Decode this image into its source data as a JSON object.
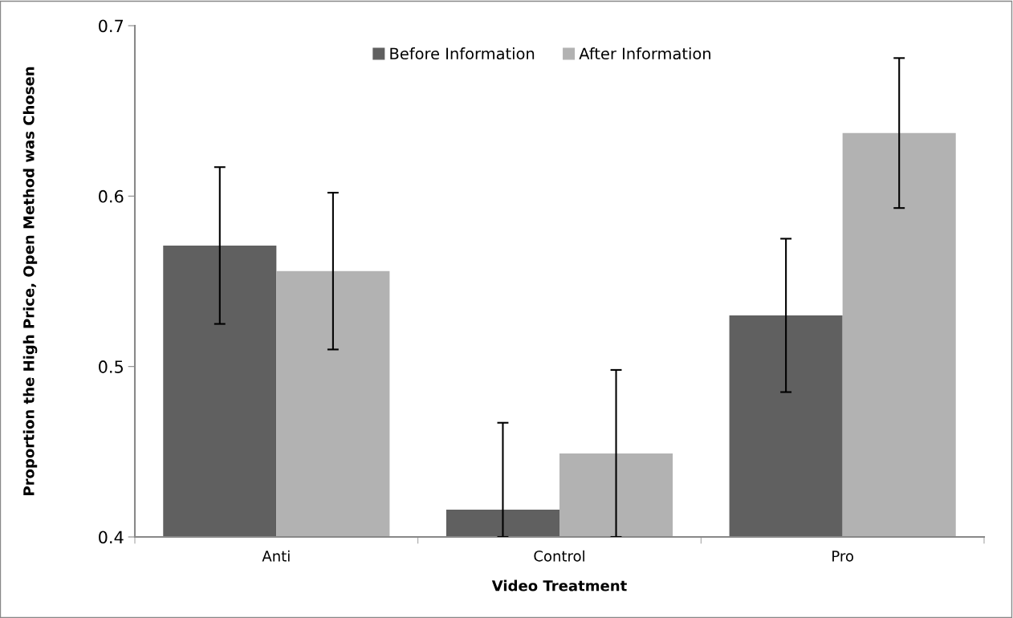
{
  "chart_data": {
    "type": "bar",
    "xlabel": "Video Treatment",
    "ylabel": "Proportion the High Price, Open Method was Chosen",
    "categories": [
      "Anti",
      "Control",
      "Pro"
    ],
    "series": [
      {
        "name": "Before Information",
        "color": "#606060",
        "values": [
          0.571,
          0.416,
          0.53
        ],
        "errors": [
          0.046,
          [
            0.4,
            0.467
          ],
          0.045
        ]
      },
      {
        "name": "After Information",
        "color": "#b2b2b2",
        "values": [
          0.556,
          0.449,
          0.637
        ],
        "errors": [
          0.046,
          [
            0.4,
            0.498
          ],
          0.044
        ]
      }
    ],
    "ylim": [
      0.4,
      0.7
    ],
    "yticks": [
      0.4,
      0.5,
      0.6,
      0.7
    ],
    "grid": false,
    "legend": "top"
  }
}
